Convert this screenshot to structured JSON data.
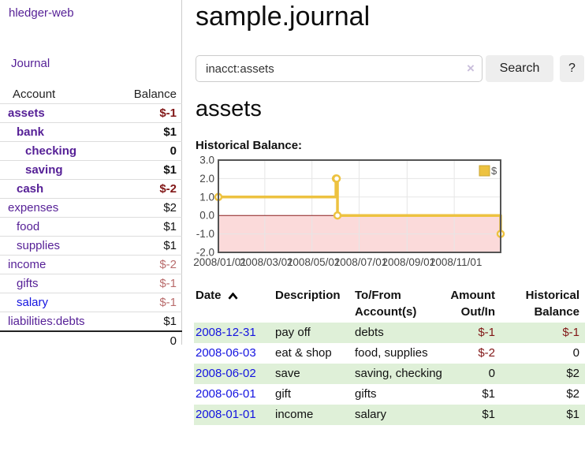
{
  "sidebar": {
    "app_title": "hledger-web",
    "nav": {
      "journal_label": "Journal"
    },
    "accounts_table": {
      "col_account": "Account",
      "col_balance": "Balance",
      "rows": [
        {
          "label": "assets",
          "indent": 0,
          "bold": true,
          "label_color": "purple",
          "balance": "$-1",
          "balance_color": "negdark",
          "balance_bold": true
        },
        {
          "label": "bank",
          "indent": 1,
          "bold": true,
          "label_color": "purple",
          "balance": "$1",
          "balance_color": "black",
          "balance_bold": true
        },
        {
          "label": "checking",
          "indent": 2,
          "bold": true,
          "label_color": "purple",
          "balance": "0",
          "balance_color": "black",
          "balance_bold": true
        },
        {
          "label": "saving",
          "indent": 2,
          "bold": true,
          "label_color": "purple",
          "balance": "$1",
          "balance_color": "black",
          "balance_bold": true
        },
        {
          "label": "cash",
          "indent": 1,
          "bold": true,
          "label_color": "purple",
          "balance": "$-2",
          "balance_color": "negdark",
          "balance_bold": true
        },
        {
          "label": "expenses",
          "indent": 0,
          "bold": false,
          "label_color": "purple",
          "balance": "$2",
          "balance_color": "black",
          "balance_bold": false
        },
        {
          "label": "food",
          "indent": 1,
          "bold": false,
          "label_color": "purple",
          "balance": "$1",
          "balance_color": "black",
          "balance_bold": false
        },
        {
          "label": "supplies",
          "indent": 1,
          "bold": false,
          "label_color": "purple",
          "balance": "$1",
          "balance_color": "black",
          "balance_bold": false
        },
        {
          "label": "income",
          "indent": 0,
          "bold": false,
          "label_color": "purple",
          "balance": "$-2",
          "balance_color": "negdim",
          "balance_bold": false
        },
        {
          "label": "gifts",
          "indent": 1,
          "bold": false,
          "label_color": "purple",
          "balance": "$-1",
          "balance_color": "negdim",
          "balance_bold": false
        },
        {
          "label": "salary",
          "indent": 1,
          "bold": false,
          "label_color": "blue",
          "balance": "$-1",
          "balance_color": "negdim",
          "balance_bold": false
        },
        {
          "label": "liabilities:debts",
          "indent": 0,
          "bold": false,
          "label_color": "purple",
          "balance": "$1",
          "balance_color": "black",
          "balance_bold": false
        }
      ],
      "total": "0"
    }
  },
  "main": {
    "page_title": "sample.journal",
    "search": {
      "query": "inacct:assets",
      "clear_icon": "×",
      "search_button": "Search",
      "help_button": "?"
    },
    "account_heading": "assets",
    "chart_heading": "Historical Balance:"
  },
  "chart_data": {
    "type": "line",
    "title": "Historical Balance",
    "step": true,
    "series": [
      {
        "name": "$",
        "color": "#edc240",
        "points": [
          [
            "2008-01-01",
            1
          ],
          [
            "2008-06-01",
            2
          ],
          [
            "2008-06-02",
            2
          ],
          [
            "2008-06-03",
            0
          ],
          [
            "2008-12-31",
            -1
          ]
        ]
      }
    ],
    "x_range": [
      "2008-01-01",
      "2008-12-31"
    ],
    "ylim": [
      -2,
      3
    ],
    "y_ticks": [
      3.0,
      2.0,
      1.0,
      0.0,
      -1.0,
      -2.0
    ],
    "y_tick_labels": [
      "3.0",
      "2.0",
      "1.0",
      "0.0",
      "-1.0",
      "-2.0"
    ],
    "x_tick_dates": [
      "2008-01-01",
      "2008-03-01",
      "2008-05-01",
      "2008-07-01",
      "2008-09-01",
      "2008-11-01"
    ],
    "x_tick_labels": [
      "2008/01/01",
      "2008/03/01",
      "2008/05/01",
      "2008/07/01",
      "2008/09/01",
      "2008/11/01"
    ],
    "legend": "$",
    "legend_position": "top-right",
    "grid": true,
    "zero_line_color": "#8b1f1f",
    "negative_fill": "#fbdada",
    "border_color": "#545454",
    "gridline_color": "#e6e6e6"
  },
  "register_table": {
    "headers": {
      "date": "Date",
      "description": "Description",
      "tofrom": "To/From Account(s)",
      "amount": "Amount Out/In",
      "balance": "Historical Balance"
    },
    "rows": [
      {
        "date": "2008-12-31",
        "description": "pay off",
        "tofrom": "debts",
        "amount": "$-1",
        "amount_neg": true,
        "balance": "$-1",
        "balance_neg": true,
        "striped": true
      },
      {
        "date": "2008-06-03",
        "description": "eat & shop",
        "tofrom": "food, supplies",
        "amount": "$-2",
        "amount_neg": true,
        "balance": "0",
        "balance_neg": false,
        "striped": false
      },
      {
        "date": "2008-06-02",
        "description": "save",
        "tofrom": "saving, checking",
        "amount": "0",
        "amount_neg": false,
        "balance": "$2",
        "balance_neg": false,
        "striped": true
      },
      {
        "date": "2008-06-01",
        "description": "gift",
        "tofrom": "gifts",
        "amount": "$1",
        "amount_neg": false,
        "balance": "$2",
        "balance_neg": false,
        "striped": false
      },
      {
        "date": "2008-01-01",
        "description": "income",
        "tofrom": "salary",
        "amount": "$1",
        "amount_neg": false,
        "balance": "$1",
        "balance_neg": false,
        "striped": true
      }
    ]
  }
}
